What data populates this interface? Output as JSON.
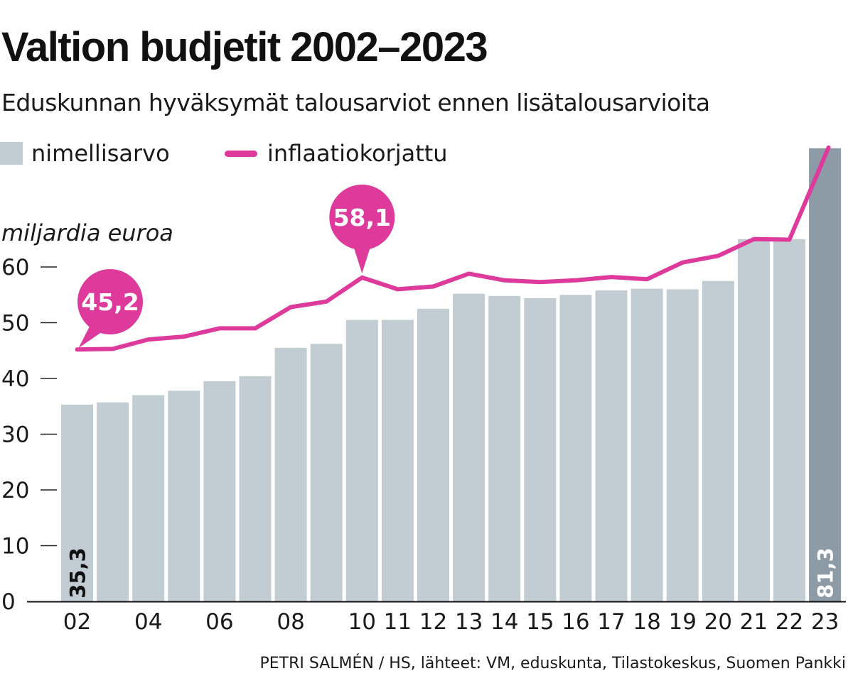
{
  "title": "Valtion budjetit 2002–2023",
  "subtitle": "Eduskunnan hyväksymät talousarviot ennen lisätalousarvioita",
  "legend": {
    "nominal_label": "nimellisarvo",
    "real_label": "inflaatiokorjattu"
  },
  "ylabel": "miljardia euroa",
  "source": "PETRI SALMÉN / HS, lähteet: VM, eduskunta, Tilastokeskus, Suomen Pankki",
  "colors": {
    "nominal_bar": "#c2ccd3",
    "nominal_bar_latest": "#8d9ba6",
    "real_line": "#dd3a9c"
  },
  "chart_data": {
    "type": "bar",
    "x": [
      "2002",
      "2003",
      "2004",
      "2005",
      "2006",
      "2007",
      "2008",
      "2009",
      "2010",
      "2011",
      "2012",
      "2013",
      "2014",
      "2015",
      "2016",
      "2017",
      "2018",
      "2019",
      "2020",
      "2021",
      "2022",
      "2023"
    ],
    "xtick_labels": [
      "02",
      "",
      "04",
      "",
      "06",
      "",
      "08",
      "",
      "10",
      "11",
      "12",
      "13",
      "14",
      "15",
      "16",
      "17",
      "18",
      "19",
      "20",
      "21",
      "22",
      "23"
    ],
    "yticks": [
      0,
      10,
      20,
      30,
      40,
      50,
      60
    ],
    "ylim": [
      0,
      84
    ],
    "series": [
      {
        "name": "nimellisarvo",
        "type": "bar",
        "values": [
          35.3,
          35.7,
          37.0,
          37.8,
          39.5,
          40.4,
          45.5,
          46.2,
          50.5,
          50.5,
          52.5,
          55.2,
          54.8,
          54.4,
          55.0,
          55.8,
          56.1,
          56.0,
          57.5,
          65.0,
          65.0,
          81.3
        ]
      },
      {
        "name": "inflaatiokorjattu",
        "type": "line",
        "values": [
          45.2,
          45.3,
          47.0,
          47.5,
          49.0,
          49.0,
          52.8,
          53.8,
          58.1,
          56.0,
          56.5,
          58.8,
          57.6,
          57.3,
          57.6,
          58.2,
          57.8,
          60.8,
          62.0,
          65.0,
          64.9,
          81.3
        ]
      }
    ],
    "annotations": [
      {
        "series": "inflaatiokorjattu",
        "x": "2002",
        "label": "45,2",
        "style": "bubble"
      },
      {
        "series": "inflaatiokorjattu",
        "x": "2010",
        "label": "58,1",
        "style": "bubble"
      },
      {
        "series": "nimellisarvo",
        "x": "2002",
        "label": "35,3",
        "style": "vertical-in-bar"
      },
      {
        "series": "nimellisarvo",
        "x": "2023",
        "label": "81,3",
        "style": "vertical-in-bar"
      }
    ]
  }
}
